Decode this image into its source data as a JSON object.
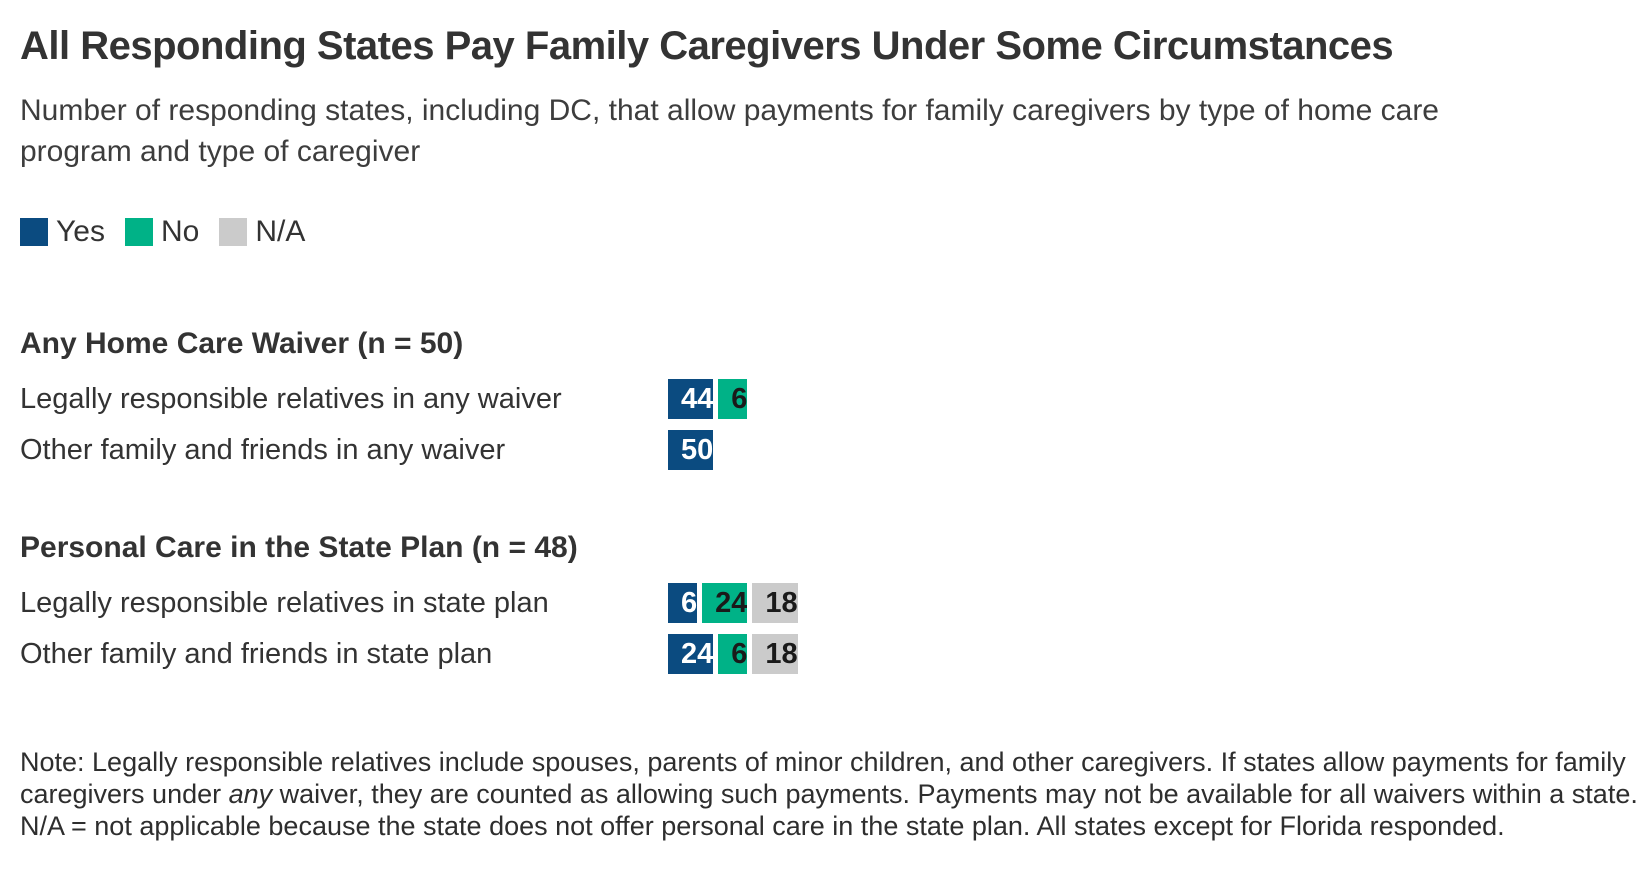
{
  "title": "All Responding States Pay Family Caregivers Under Some Circumstances",
  "subtitle": {
    "line1": "Number of responding states, including DC, that allow payments for family caregivers by type of home care",
    "line2": "program and type of caregiver"
  },
  "note": {
    "line1": "Note: Legally responsible relatives include spouses, parents of minor children, and other caregivers. If states allow payments for family",
    "line2_pre": "caregivers under ",
    "line2_italic": "any",
    "line2_post": " waiver, they are counted as allowing such payments. Payments may not be available for all waivers within a state.",
    "line3": "N/A = not applicable because the state does not offer personal care in the state plan. All states except for Florida responded."
  },
  "chart_data": {
    "type": "bar",
    "orientation": "horizontal_stacked",
    "axis_max": 50,
    "grid": false,
    "legend_position": "top-left",
    "legend": [
      {
        "label": "Yes",
        "color": "#0b4b80",
        "value_text_color": "#ffffff"
      },
      {
        "label": "No",
        "color": "#00b287",
        "value_text_color": "#1a1a1a"
      },
      {
        "label": "N/A",
        "color": "#cbcbcb",
        "value_text_color": "#1a1a1a"
      }
    ],
    "groups": [
      {
        "header": "Any Home Care Waiver (n = 50)",
        "n": 50,
        "rows": [
          {
            "label": "Legally responsible relatives in any waiver",
            "segments": [
              {
                "series": "Yes",
                "value": 44
              },
              {
                "series": "No",
                "value": 6
              }
            ]
          },
          {
            "label": "Other family and friends in any waiver",
            "segments": [
              {
                "series": "Yes",
                "value": 50
              }
            ]
          }
        ]
      },
      {
        "header": "Personal Care in the State Plan (n = 48)",
        "n": 48,
        "rows": [
          {
            "label": "Legally responsible relatives in state plan",
            "segments": [
              {
                "series": "Yes",
                "value": 6
              },
              {
                "series": "No",
                "value": 24
              },
              {
                "series": "N/A",
                "value": 18
              }
            ]
          },
          {
            "label": "Other family and friends in state plan",
            "segments": [
              {
                "series": "Yes",
                "value": 24
              },
              {
                "series": "No",
                "value": 6
              },
              {
                "series": "N/A",
                "value": 18
              }
            ]
          }
        ]
      }
    ]
  }
}
